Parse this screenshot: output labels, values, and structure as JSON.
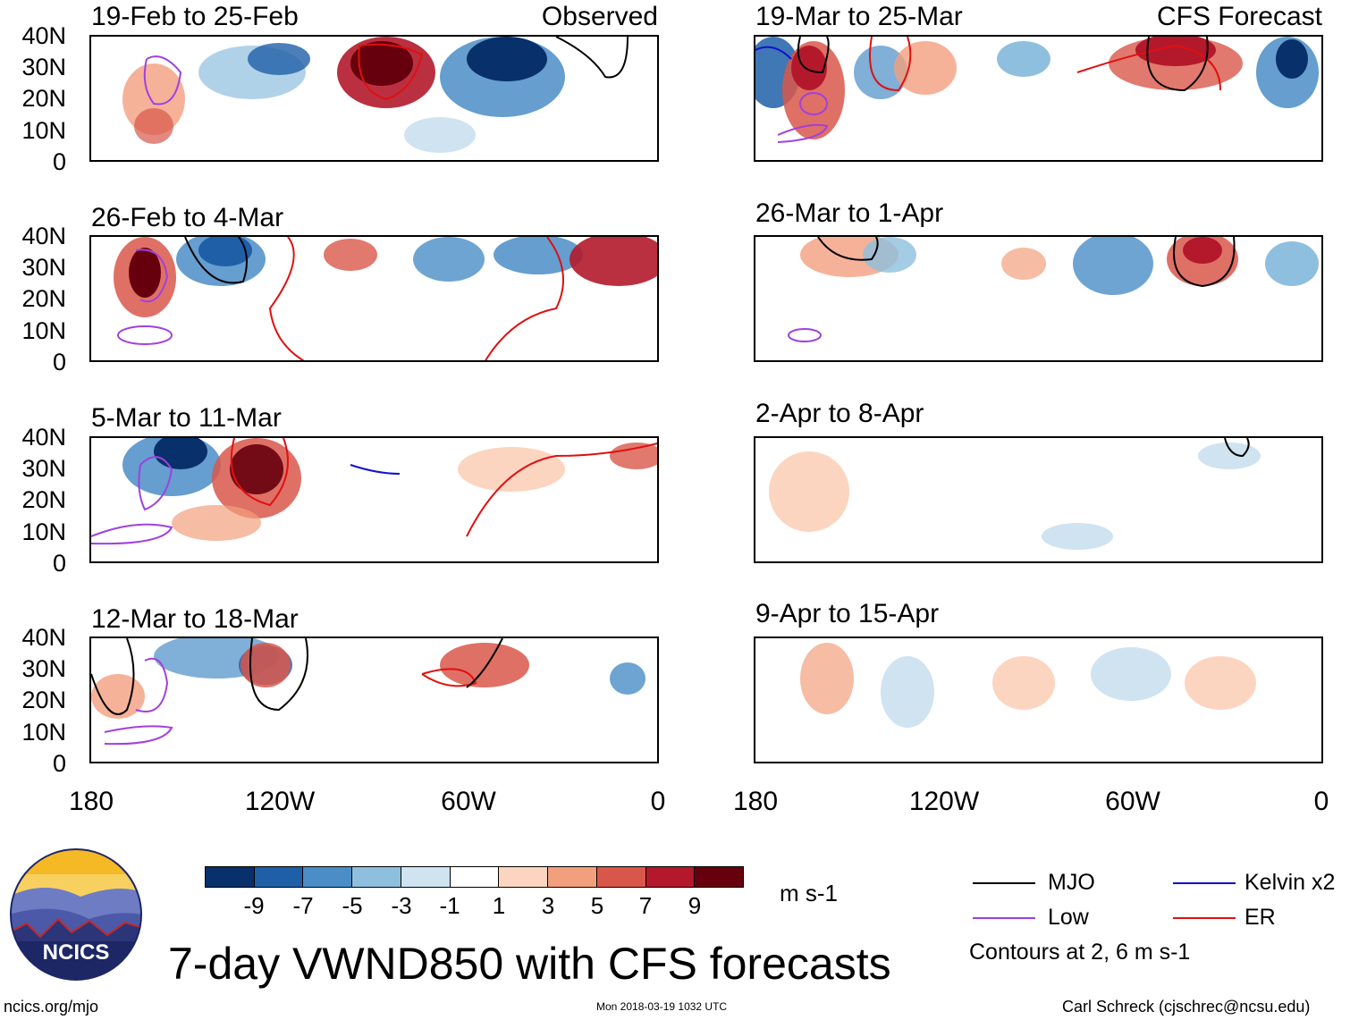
{
  "panels": {
    "p1": {
      "title": "19-Feb to 25-Feb",
      "label": "Observed"
    },
    "p2": {
      "title": "26-Feb to 4-Mar"
    },
    "p3": {
      "title": "5-Mar to 11-Mar"
    },
    "p4": {
      "title": "12-Mar to 18-Mar"
    },
    "p5": {
      "title": "19-Mar to 25-Mar",
      "label": "CFS Forecast"
    },
    "p6": {
      "title": "26-Mar to 1-Apr"
    },
    "p7": {
      "title": "2-Apr to 8-Apr"
    },
    "p8": {
      "title": "9-Apr to 15-Apr"
    }
  },
  "axes": {
    "lat": [
      "40N",
      "30N",
      "20N",
      "10N",
      "0"
    ],
    "lon": [
      "180",
      "120W",
      "60W",
      "0"
    ]
  },
  "colorbar": {
    "labels": [
      "-9",
      "-7",
      "-5",
      "-3",
      "-1",
      "1",
      "3",
      "5",
      "7",
      "9"
    ],
    "colors": [
      "#08306b",
      "#1f5fa8",
      "#4a8dc7",
      "#8fbfdf",
      "#cfe3f1",
      "#ffffff",
      "#fcd5c0",
      "#f29f7e",
      "#d9574a",
      "#b3192b",
      "#67000d"
    ],
    "units": "m s-1"
  },
  "legend": {
    "mjo": "MJO",
    "kelvin": "Kelvin x2",
    "low": "Low",
    "er": "ER",
    "contours": "Contours at 2, 6 m s-1",
    "colors": {
      "mjo": "#000000",
      "kelvin": "#1010d0",
      "low": "#a040e0",
      "er": "#e01010"
    }
  },
  "logo": {
    "text": "NCICS"
  },
  "title": "7-day VWND850 with CFS forecasts",
  "footer": {
    "left": "ncics.org/mjo",
    "center": "Mon 2018-03-19 1032 UTC",
    "right": "Carl Schreck (cjschrec@ncsu.edu)"
  }
}
